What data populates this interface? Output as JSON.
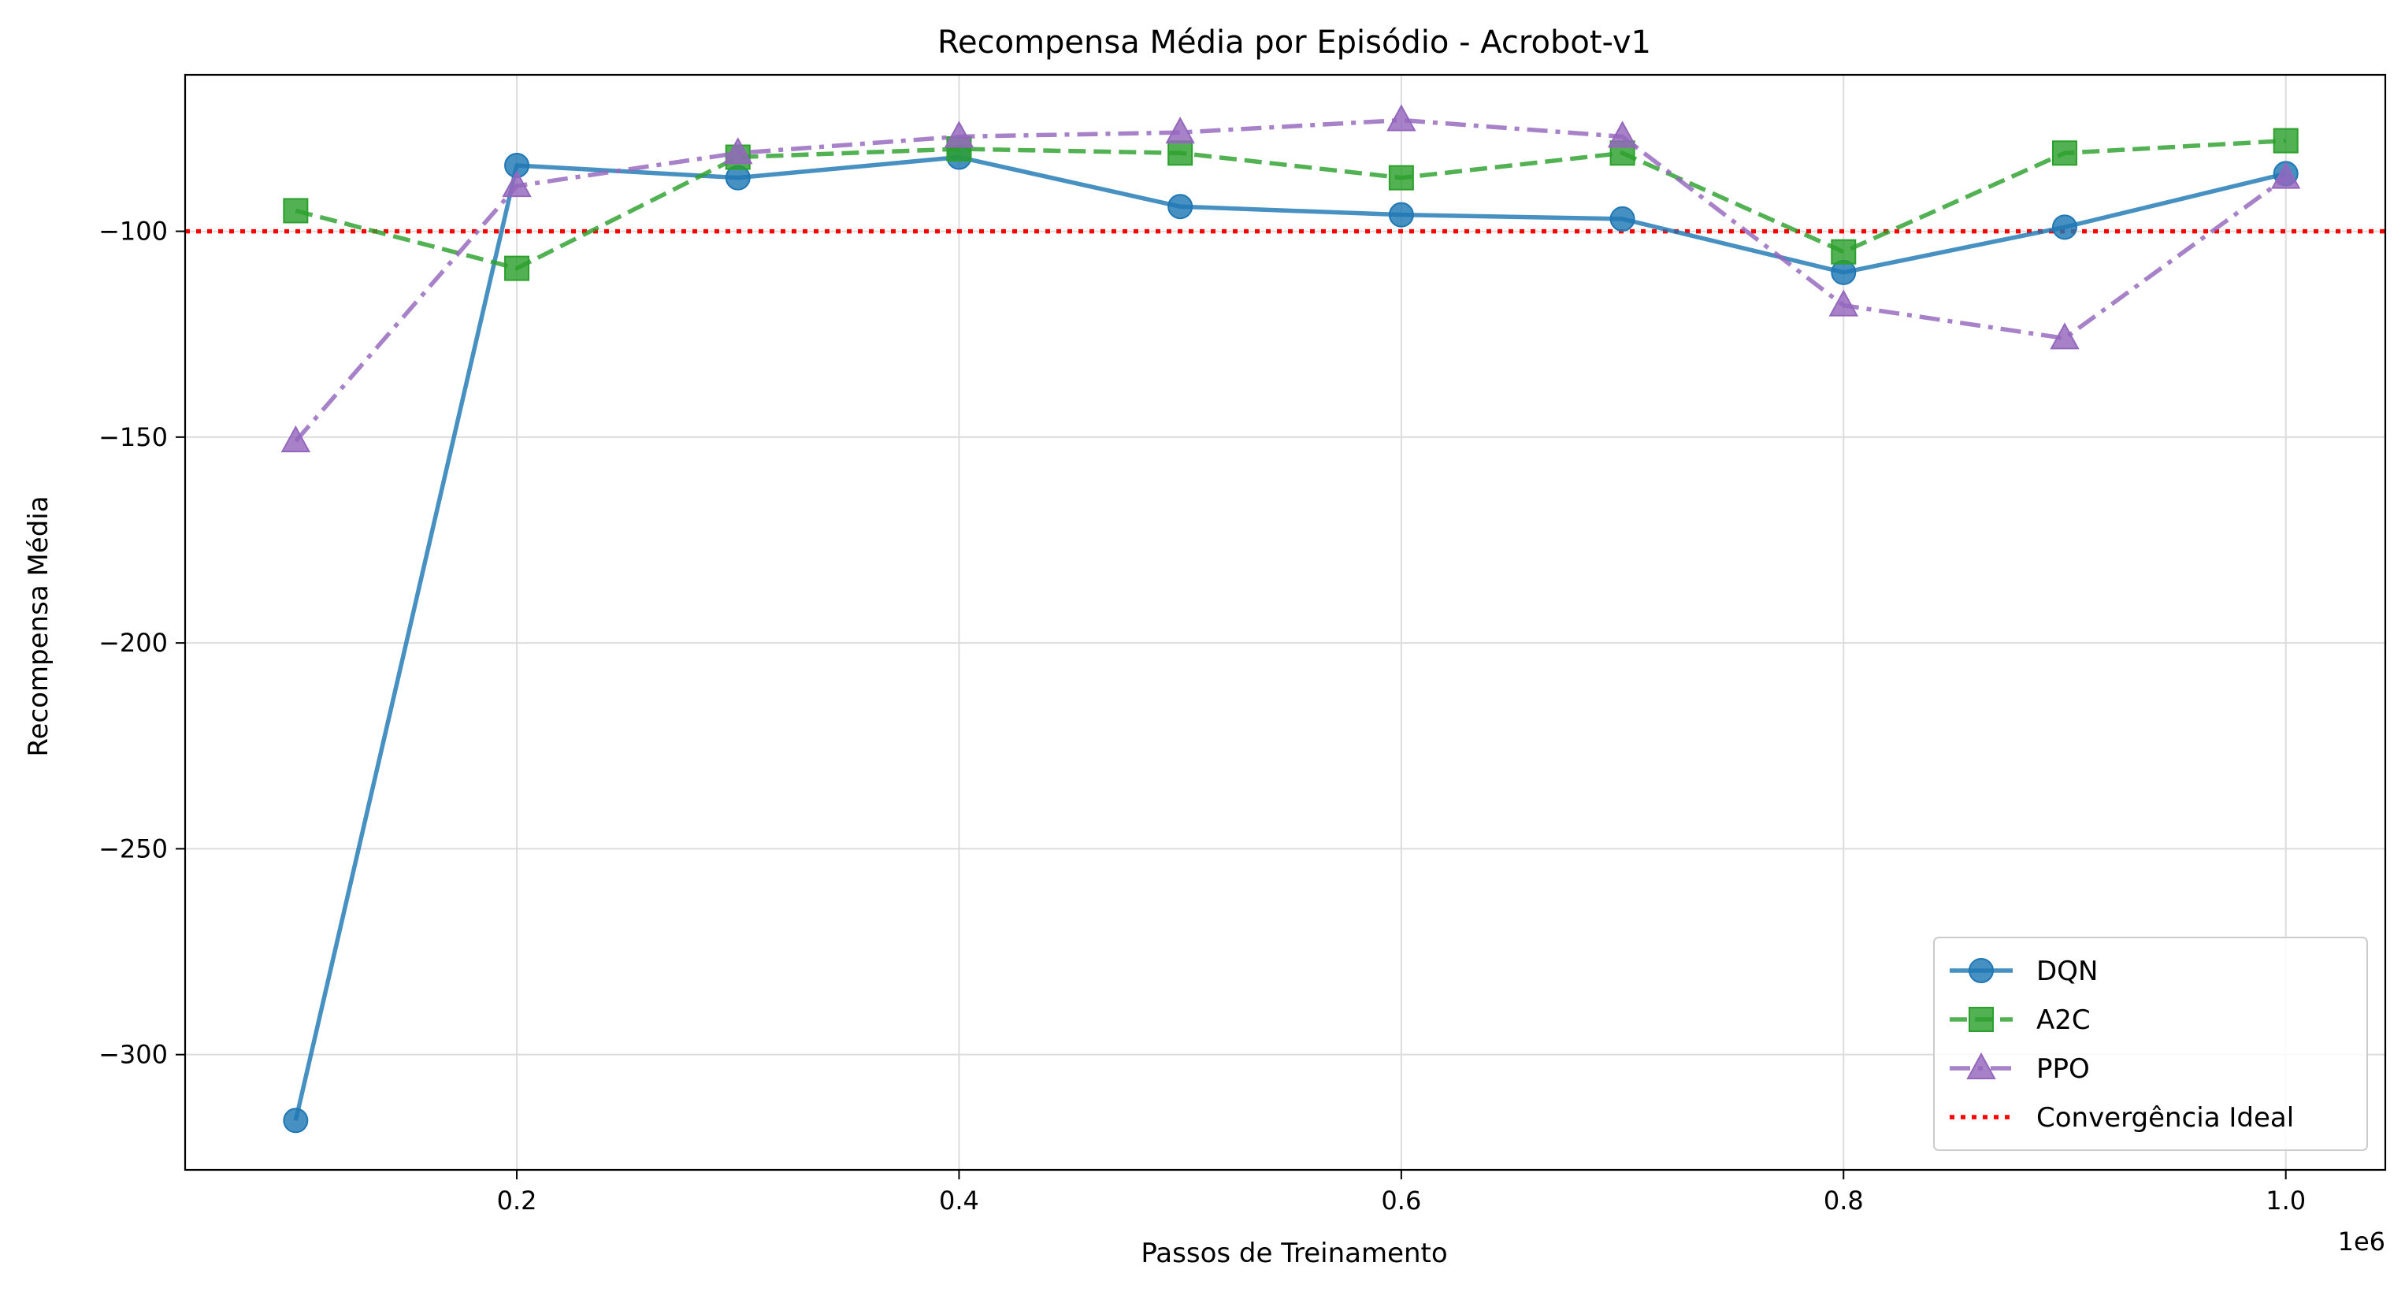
{
  "chart_data": {
    "type": "line",
    "title": "Recompensa Média por Episódio - Acrobot-v1",
    "xlabel": "Passos de Treinamento",
    "ylabel": "Recompensa Média",
    "x_offset_label": "1e6",
    "xlim": [
      0.05,
      1.045
    ],
    "ylim": [
      -328,
      -62
    ],
    "xticks": [
      0.2,
      0.4,
      0.6,
      0.8,
      1.0
    ],
    "xtick_labels": [
      "0.2",
      "0.4",
      "0.6",
      "0.8",
      "1.0"
    ],
    "yticks": [
      -300,
      -250,
      -200,
      -150,
      -100
    ],
    "ytick_labels": [
      "−300",
      "−250",
      "−200",
      "−150",
      "−100"
    ],
    "grid": true,
    "legend_position": "lower-right",
    "x": [
      0.1,
      0.2,
      0.3,
      0.4,
      0.5,
      0.6,
      0.7,
      0.8,
      0.9,
      1.0
    ],
    "series": [
      {
        "name": "DQN",
        "color": "#1f77b4",
        "marker": "circle",
        "line_style": "solid",
        "values": [
          -316,
          -84,
          -87,
          -82,
          -94,
          -96,
          -97,
          -110,
          -99,
          -86
        ]
      },
      {
        "name": "A2C",
        "color": "#2ca02c",
        "marker": "square",
        "line_style": "dashed",
        "values": [
          -95,
          -109,
          -82,
          -80,
          -81,
          -87,
          -81,
          -105,
          -81,
          -78
        ]
      },
      {
        "name": "PPO",
        "color": "#9467bd",
        "marker": "triangle",
        "line_style": "dashdot",
        "values": [
          -151,
          -89,
          -81,
          -77,
          -76,
          -73,
          -77,
          -118,
          -126,
          -87
        ]
      }
    ],
    "reference_line": {
      "name": "Convergência Ideal",
      "y": -100,
      "color": "#ff0000",
      "line_style": "dotted"
    }
  }
}
